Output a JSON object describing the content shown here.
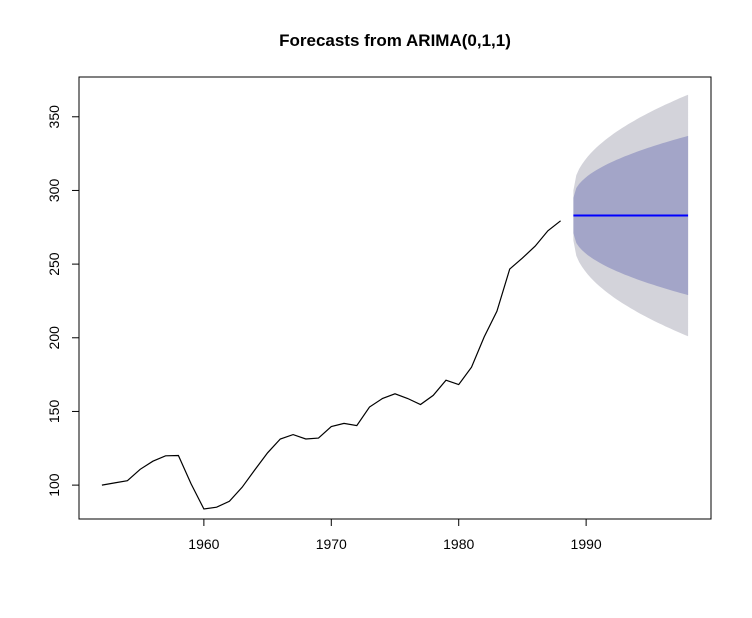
{
  "chart_data": {
    "type": "line",
    "title": "Forecasts from ARIMA(0,1,1)",
    "xlabel": "",
    "ylabel": "",
    "xlim": [
      1950.2,
      1999.8
    ],
    "ylim": [
      77,
      377
    ],
    "x_ticks": [
      1960,
      1970,
      1980,
      1990
    ],
    "y_ticks": [
      100,
      150,
      200,
      250,
      300,
      350
    ],
    "series": [
      {
        "name": "observed",
        "color": "#000000",
        "x": [
          1952,
          1953,
          1954,
          1955,
          1956,
          1957,
          1958,
          1959,
          1960,
          1961,
          1962,
          1963,
          1964,
          1965,
          1966,
          1967,
          1968,
          1969,
          1970,
          1971,
          1972,
          1973,
          1974,
          1975,
          1976,
          1977,
          1978,
          1979,
          1980,
          1981,
          1982,
          1983,
          1984,
          1985,
          1986,
          1987,
          1988
        ],
        "values": [
          100,
          101.5,
          103,
          110.7,
          116.2,
          119.9,
          120.1,
          100.8,
          83.8,
          85,
          89,
          98.5,
          110.3,
          121.9,
          131.3,
          134.3,
          131.3,
          131.9,
          139.7,
          141.9,
          140.4,
          153,
          158.7,
          162,
          158.8,
          154.7,
          160.9,
          171.2,
          168.2,
          180,
          200.6,
          218,
          246.6,
          254.1,
          262.2,
          272.6,
          279.4
        ]
      }
    ],
    "forecast": {
      "x": [
        1989,
        1998
      ],
      "mean": 283,
      "mean_color": "#0000ff",
      "interval_80": {
        "lower": [
          271,
          229
        ],
        "upper": [
          295,
          337
        ],
        "color": "#a3a5c8"
      },
      "interval_95": {
        "lower": [
          266,
          201
        ],
        "upper": [
          300,
          365
        ],
        "color": "#d3d3da"
      }
    }
  }
}
